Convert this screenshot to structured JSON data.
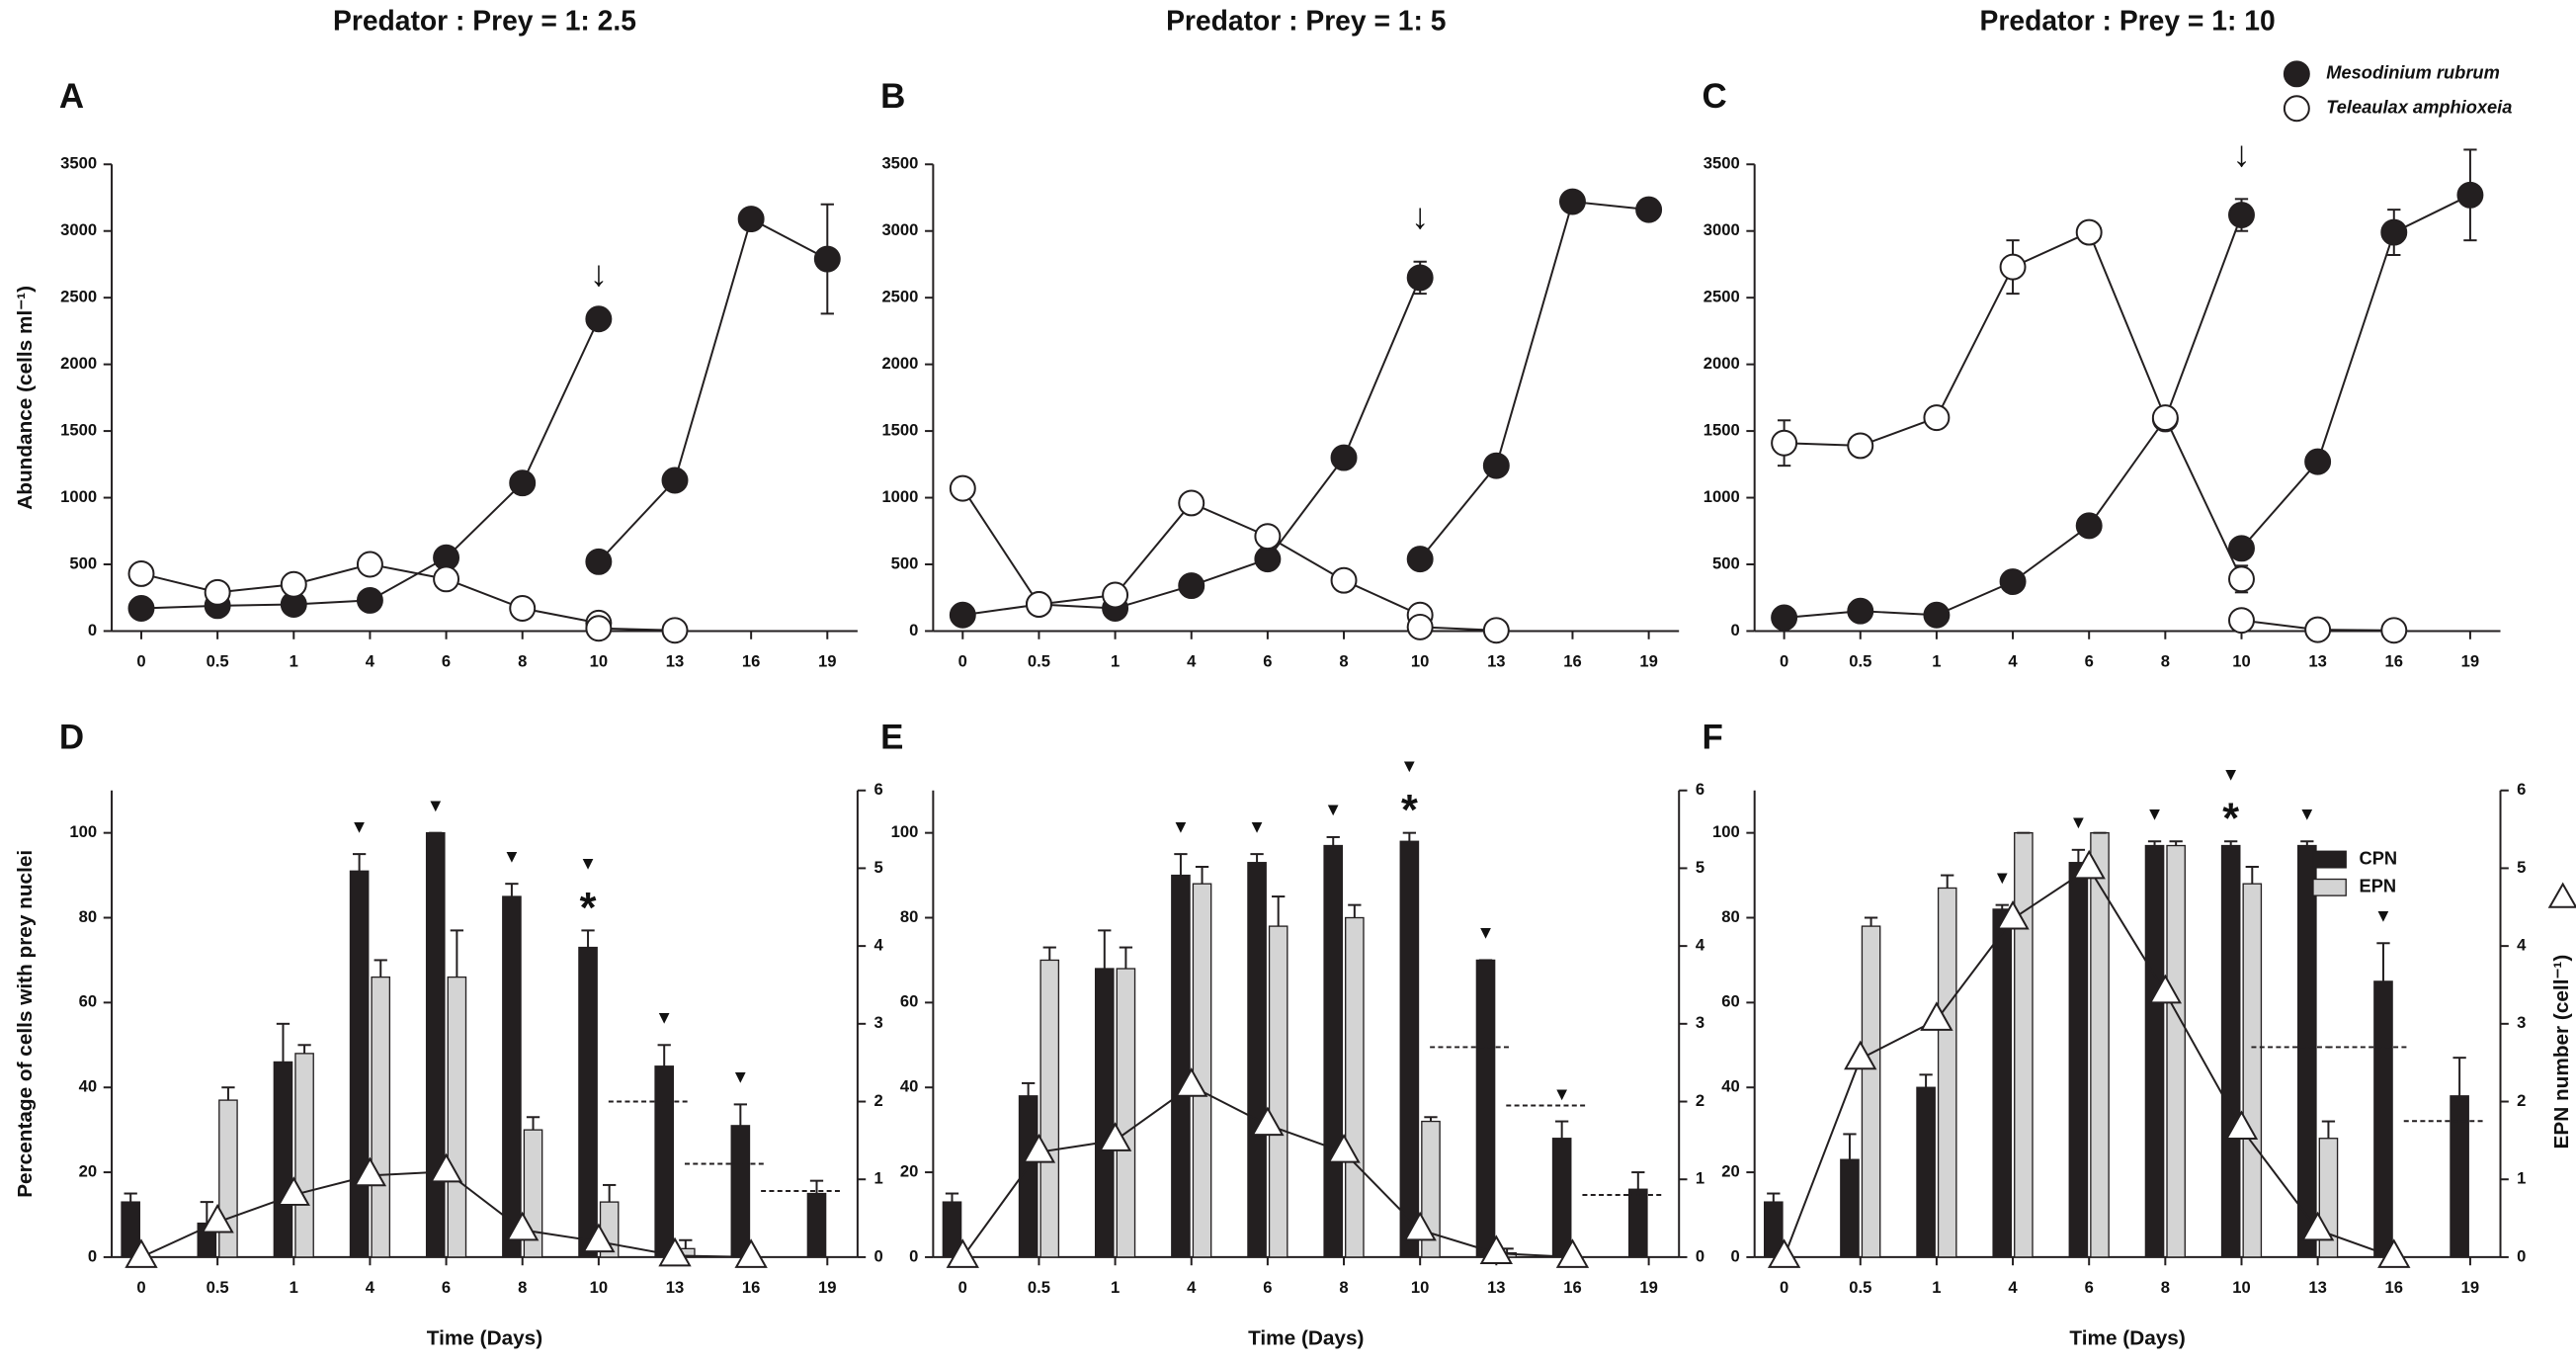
{
  "chart_data": [
    {
      "type": "line",
      "panel": "A",
      "title": "Predator : Prey = 1: 2.5",
      "ylabel": "Abundance (cells ml⁻¹)",
      "categories": [
        "0",
        "0.5",
        "1",
        "4",
        "6",
        "8",
        "10",
        "13",
        "16",
        "19"
      ],
      "ylim": [
        0,
        3500
      ],
      "yticks": [
        0,
        500,
        1000,
        1500,
        2000,
        2500,
        3000,
        3500
      ],
      "series": [
        {
          "name": "Mesodinium rubrum",
          "color": "#231f20",
          "marker": "filled",
          "values": [
            170,
            190,
            200,
            230,
            550,
            1110,
            2340,
            null,
            null,
            null
          ],
          "errors": [
            null,
            null,
            null,
            null,
            null,
            null,
            null,
            null,
            null,
            null
          ],
          "values_2": [
            null,
            null,
            null,
            null,
            null,
            null,
            520,
            1130,
            3090,
            2790
          ],
          "errors_2": [
            null,
            null,
            null,
            null,
            null,
            null,
            null,
            60,
            50,
            410
          ]
        },
        {
          "name": "Teleaulax amphioxeia",
          "color": "#231f20",
          "marker": "open",
          "values": [
            430,
            290,
            350,
            500,
            390,
            170,
            60,
            null,
            null,
            null
          ],
          "errors": [
            null,
            null,
            null,
            null,
            null,
            null,
            null,
            null,
            null,
            null
          ],
          "values_2": [
            null,
            null,
            null,
            null,
            null,
            null,
            20,
            5,
            null,
            null
          ],
          "errors_2": [
            null,
            null,
            null,
            null,
            null,
            null,
            null,
            null,
            null,
            null
          ]
        }
      ],
      "annotation": {
        "text": "↓",
        "x": "10"
      },
      "legend": false
    },
    {
      "type": "line",
      "panel": "B",
      "title": "Predator : Prey = 1: 5",
      "categories": [
        "0",
        "0.5",
        "1",
        "4",
        "6",
        "8",
        "10",
        "13",
        "16",
        "19"
      ],
      "ylim": [
        0,
        3500
      ],
      "yticks": [
        0,
        500,
        1000,
        1500,
        2000,
        2500,
        3000,
        3500
      ],
      "series": [
        {
          "name": "Mesodinium rubrum",
          "color": "#231f20",
          "marker": "filled",
          "values": [
            120,
            200,
            170,
            340,
            540,
            1300,
            2650,
            null,
            null,
            null
          ],
          "errors": [
            null,
            null,
            null,
            null,
            null,
            null,
            120,
            null,
            null,
            null
          ],
          "values_2": [
            null,
            null,
            null,
            null,
            null,
            null,
            540,
            1240,
            3220,
            3160
          ],
          "errors_2": [
            null,
            null,
            null,
            null,
            null,
            null,
            null,
            null,
            30,
            80
          ]
        },
        {
          "name": "Teleaulax amphioxeia",
          "color": "#231f20",
          "marker": "open",
          "values": [
            1070,
            200,
            270,
            960,
            710,
            380,
            120,
            null,
            null,
            null
          ],
          "errors": [
            null,
            null,
            null,
            40,
            null,
            null,
            null,
            null,
            null,
            null
          ],
          "values_2": [
            null,
            null,
            null,
            null,
            null,
            null,
            30,
            5,
            null,
            null
          ],
          "errors_2": [
            null,
            null,
            null,
            null,
            null,
            null,
            null,
            null,
            null,
            null
          ]
        }
      ],
      "annotation": {
        "text": "↓",
        "x": "10"
      },
      "legend": false
    },
    {
      "type": "line",
      "panel": "C",
      "title": "Predator : Prey = 1: 10",
      "categories": [
        "0",
        "0.5",
        "1",
        "4",
        "6",
        "8",
        "10",
        "13",
        "16",
        "19"
      ],
      "ylim": [
        0,
        3500
      ],
      "yticks": [
        0,
        500,
        1000,
        1500,
        2000,
        2500,
        3000,
        3500
      ],
      "series": [
        {
          "name": "Mesodinium rubrum",
          "color": "#231f20",
          "marker": "filled",
          "values": [
            100,
            150,
            120,
            370,
            790,
            1590,
            3120,
            null,
            null,
            null
          ],
          "errors": [
            null,
            null,
            null,
            null,
            null,
            null,
            120,
            null,
            null,
            null
          ],
          "values_2": [
            null,
            null,
            null,
            null,
            null,
            null,
            620,
            1270,
            2990,
            3270
          ],
          "errors_2": [
            null,
            null,
            null,
            null,
            null,
            null,
            null,
            null,
            170,
            340
          ]
        },
        {
          "name": "Teleaulax amphioxeia",
          "color": "#231f20",
          "marker": "open",
          "values": [
            1410,
            1390,
            1600,
            2730,
            2990,
            1600,
            390,
            null,
            null,
            null
          ],
          "errors": [
            170,
            null,
            60,
            200,
            80,
            null,
            100,
            null,
            null,
            null
          ],
          "values_2": [
            null,
            null,
            null,
            null,
            null,
            null,
            80,
            10,
            5,
            null
          ],
          "errors_2": [
            null,
            null,
            null,
            null,
            null,
            null,
            null,
            null,
            null,
            null
          ]
        }
      ],
      "annotation": {
        "text": "↓",
        "x": "10"
      },
      "legend": true
    },
    {
      "type": "bar_line",
      "panel": "D",
      "xlabel": "Time (Days)",
      "ylabel": "Percentage of cells with prey nuclei",
      "categories": [
        "0",
        "0.5",
        "1",
        "4",
        "6",
        "8",
        "10",
        "13",
        "16",
        "19"
      ],
      "ylim": [
        0,
        110
      ],
      "yticks": [
        0,
        20,
        40,
        60,
        80,
        100
      ],
      "y2lim": [
        0,
        6
      ],
      "y2ticks": [
        0,
        1,
        2,
        3,
        4,
        5,
        6
      ],
      "series": [
        {
          "name": "CPN",
          "color": "#231f20",
          "values": [
            13,
            8,
            46,
            91,
            100,
            85,
            73,
            45,
            31,
            15
          ],
          "errors": [
            2,
            5,
            9,
            4,
            0,
            3,
            4,
            5,
            5,
            3
          ]
        },
        {
          "name": "EPN",
          "color": "#d4d4d4",
          "values": [
            null,
            37,
            48,
            66,
            66,
            30,
            13,
            2,
            null,
            null
          ],
          "errors": [
            null,
            3,
            2,
            4,
            11,
            3,
            4,
            2,
            null,
            null
          ]
        },
        {
          "axis": "y2",
          "marker": "triangle",
          "color": "#ffffff",
          "values": [
            0,
            0.45,
            0.8,
            1.05,
            1.1,
            0.35,
            0.2,
            0.02,
            0,
            null
          ]
        }
      ],
      "dashed_lines": {
        "axis": "y2",
        "values": [
          null,
          null,
          null,
          null,
          null,
          null,
          2.0,
          1.2,
          0.85,
          null
        ]
      },
      "arrowhead": "▼",
      "arrowhead_at": [
        "4",
        "6",
        "8",
        "10",
        "13",
        "16"
      ],
      "asterisk": "*",
      "asterisk_at": "10",
      "legend": false
    },
    {
      "type": "bar_line",
      "panel": "E",
      "xlabel": "Time (Days)",
      "categories": [
        "0",
        "0.5",
        "1",
        "4",
        "6",
        "8",
        "10",
        "13",
        "16",
        "19"
      ],
      "ylim": [
        0,
        110
      ],
      "yticks": [
        0,
        20,
        40,
        60,
        80,
        100
      ],
      "y2lim": [
        0,
        6
      ],
      "y2ticks": [
        0,
        1,
        2,
        3,
        4,
        5,
        6
      ],
      "series": [
        {
          "name": "CPN",
          "color": "#231f20",
          "values": [
            13,
            38,
            68,
            90,
            93,
            97,
            98,
            70,
            28,
            16
          ],
          "errors": [
            2,
            3,
            9,
            5,
            2,
            2,
            2,
            0,
            4,
            4
          ]
        },
        {
          "name": "EPN",
          "color": "#d4d4d4",
          "values": [
            null,
            70,
            68,
            88,
            78,
            80,
            32,
            1,
            null,
            null
          ],
          "errors": [
            null,
            3,
            5,
            4,
            7,
            3,
            1,
            1,
            null,
            null
          ]
        },
        {
          "axis": "y2",
          "marker": "triangle",
          "color": "#ffffff",
          "values": [
            0,
            1.35,
            1.5,
            2.2,
            1.7,
            1.35,
            0.35,
            0.05,
            0,
            null
          ]
        }
      ],
      "dashed_lines": {
        "axis": "y2",
        "values": [
          null,
          null,
          null,
          null,
          null,
          null,
          2.7,
          1.95,
          0.8,
          null
        ]
      },
      "arrowhead": "▼",
      "arrowhead_at": [
        "4",
        "6",
        "8",
        "10",
        "13",
        "16"
      ],
      "asterisk": "*",
      "asterisk_at": "10",
      "legend": false
    },
    {
      "type": "bar_line",
      "panel": "F",
      "xlabel": "Time (Days)",
      "y2label": "EPN number (cell⁻¹)",
      "categories": [
        "0",
        "0.5",
        "1",
        "4",
        "6",
        "8",
        "10",
        "13",
        "16",
        "19"
      ],
      "ylim": [
        0,
        110
      ],
      "yticks": [
        0,
        20,
        40,
        60,
        80,
        100
      ],
      "y2lim": [
        0,
        6
      ],
      "y2ticks": [
        0,
        1,
        2,
        3,
        4,
        5,
        6
      ],
      "series": [
        {
          "name": "CPN",
          "color": "#231f20",
          "values": [
            13,
            23,
            40,
            82,
            93,
            97,
            97,
            97,
            65,
            38
          ],
          "errors": [
            2,
            6,
            3,
            1,
            3,
            1,
            1,
            1,
            9,
            9
          ]
        },
        {
          "name": "EPN",
          "color": "#d4d4d4",
          "values": [
            null,
            78,
            87,
            100,
            100,
            97,
            88,
            28,
            null,
            null
          ],
          "errors": [
            null,
            2,
            3,
            0,
            0,
            1,
            4,
            4,
            null,
            null
          ]
        },
        {
          "axis": "y2",
          "marker": "triangle",
          "color": "#ffffff",
          "values": [
            0,
            2.55,
            3.05,
            4.35,
            5.0,
            3.4,
            1.65,
            0.35,
            0,
            null
          ]
        }
      ],
      "dashed_lines": {
        "axis": "y2",
        "values": [
          null,
          null,
          null,
          null,
          null,
          null,
          2.7,
          2.7,
          1.75,
          null
        ]
      },
      "arrowhead": "▼",
      "arrowhead_at": [
        "4",
        "6",
        "8",
        "10",
        "13",
        "16"
      ],
      "asterisk": "*",
      "asterisk_at": "10",
      "legend": true
    }
  ]
}
